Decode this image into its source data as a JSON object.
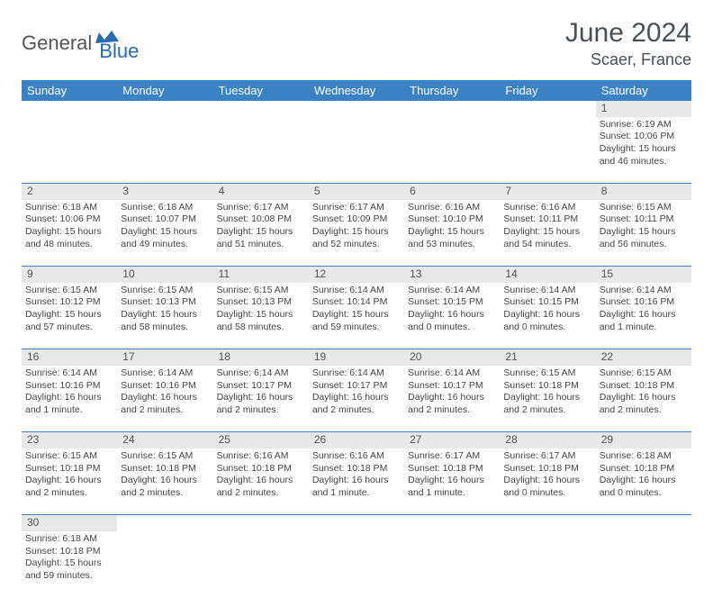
{
  "logo": {
    "part1": "General",
    "part2": "Blue"
  },
  "title": "June 2024",
  "location": "Scaer, France",
  "colors": {
    "header_bg": "#3b82c4",
    "header_text": "#ffffff",
    "daynum_bg": "#e8e8e8",
    "border": "#3b82c4",
    "logo_gray": "#555555",
    "logo_blue": "#2b6cb0"
  },
  "weekdays": [
    "Sunday",
    "Monday",
    "Tuesday",
    "Wednesday",
    "Thursday",
    "Friday",
    "Saturday"
  ],
  "weeks": [
    {
      "nums": [
        "",
        "",
        "",
        "",
        "",
        "",
        "1"
      ],
      "cells": [
        null,
        null,
        null,
        null,
        null,
        null,
        {
          "sunrise": "Sunrise: 6:19 AM",
          "sunset": "Sunset: 10:06 PM",
          "day1": "Daylight: 15 hours",
          "day2": "and 46 minutes."
        }
      ]
    },
    {
      "nums": [
        "2",
        "3",
        "4",
        "5",
        "6",
        "7",
        "8"
      ],
      "cells": [
        {
          "sunrise": "Sunrise: 6:18 AM",
          "sunset": "Sunset: 10:06 PM",
          "day1": "Daylight: 15 hours",
          "day2": "and 48 minutes."
        },
        {
          "sunrise": "Sunrise: 6:18 AM",
          "sunset": "Sunset: 10:07 PM",
          "day1": "Daylight: 15 hours",
          "day2": "and 49 minutes."
        },
        {
          "sunrise": "Sunrise: 6:17 AM",
          "sunset": "Sunset: 10:08 PM",
          "day1": "Daylight: 15 hours",
          "day2": "and 51 minutes."
        },
        {
          "sunrise": "Sunrise: 6:17 AM",
          "sunset": "Sunset: 10:09 PM",
          "day1": "Daylight: 15 hours",
          "day2": "and 52 minutes."
        },
        {
          "sunrise": "Sunrise: 6:16 AM",
          "sunset": "Sunset: 10:10 PM",
          "day1": "Daylight: 15 hours",
          "day2": "and 53 minutes."
        },
        {
          "sunrise": "Sunrise: 6:16 AM",
          "sunset": "Sunset: 10:11 PM",
          "day1": "Daylight: 15 hours",
          "day2": "and 54 minutes."
        },
        {
          "sunrise": "Sunrise: 6:15 AM",
          "sunset": "Sunset: 10:11 PM",
          "day1": "Daylight: 15 hours",
          "day2": "and 56 minutes."
        }
      ]
    },
    {
      "nums": [
        "9",
        "10",
        "11",
        "12",
        "13",
        "14",
        "15"
      ],
      "cells": [
        {
          "sunrise": "Sunrise: 6:15 AM",
          "sunset": "Sunset: 10:12 PM",
          "day1": "Daylight: 15 hours",
          "day2": "and 57 minutes."
        },
        {
          "sunrise": "Sunrise: 6:15 AM",
          "sunset": "Sunset: 10:13 PM",
          "day1": "Daylight: 15 hours",
          "day2": "and 58 minutes."
        },
        {
          "sunrise": "Sunrise: 6:15 AM",
          "sunset": "Sunset: 10:13 PM",
          "day1": "Daylight: 15 hours",
          "day2": "and 58 minutes."
        },
        {
          "sunrise": "Sunrise: 6:14 AM",
          "sunset": "Sunset: 10:14 PM",
          "day1": "Daylight: 15 hours",
          "day2": "and 59 minutes."
        },
        {
          "sunrise": "Sunrise: 6:14 AM",
          "sunset": "Sunset: 10:15 PM",
          "day1": "Daylight: 16 hours",
          "day2": "and 0 minutes."
        },
        {
          "sunrise": "Sunrise: 6:14 AM",
          "sunset": "Sunset: 10:15 PM",
          "day1": "Daylight: 16 hours",
          "day2": "and 0 minutes."
        },
        {
          "sunrise": "Sunrise: 6:14 AM",
          "sunset": "Sunset: 10:16 PM",
          "day1": "Daylight: 16 hours",
          "day2": "and 1 minute."
        }
      ]
    },
    {
      "nums": [
        "16",
        "17",
        "18",
        "19",
        "20",
        "21",
        "22"
      ],
      "cells": [
        {
          "sunrise": "Sunrise: 6:14 AM",
          "sunset": "Sunset: 10:16 PM",
          "day1": "Daylight: 16 hours",
          "day2": "and 1 minute."
        },
        {
          "sunrise": "Sunrise: 6:14 AM",
          "sunset": "Sunset: 10:16 PM",
          "day1": "Daylight: 16 hours",
          "day2": "and 2 minutes."
        },
        {
          "sunrise": "Sunrise: 6:14 AM",
          "sunset": "Sunset: 10:17 PM",
          "day1": "Daylight: 16 hours",
          "day2": "and 2 minutes."
        },
        {
          "sunrise": "Sunrise: 6:14 AM",
          "sunset": "Sunset: 10:17 PM",
          "day1": "Daylight: 16 hours",
          "day2": "and 2 minutes."
        },
        {
          "sunrise": "Sunrise: 6:14 AM",
          "sunset": "Sunset: 10:17 PM",
          "day1": "Daylight: 16 hours",
          "day2": "and 2 minutes."
        },
        {
          "sunrise": "Sunrise: 6:15 AM",
          "sunset": "Sunset: 10:18 PM",
          "day1": "Daylight: 16 hours",
          "day2": "and 2 minutes."
        },
        {
          "sunrise": "Sunrise: 6:15 AM",
          "sunset": "Sunset: 10:18 PM",
          "day1": "Daylight: 16 hours",
          "day2": "and 2 minutes."
        }
      ]
    },
    {
      "nums": [
        "23",
        "24",
        "25",
        "26",
        "27",
        "28",
        "29"
      ],
      "cells": [
        {
          "sunrise": "Sunrise: 6:15 AM",
          "sunset": "Sunset: 10:18 PM",
          "day1": "Daylight: 16 hours",
          "day2": "and 2 minutes."
        },
        {
          "sunrise": "Sunrise: 6:15 AM",
          "sunset": "Sunset: 10:18 PM",
          "day1": "Daylight: 16 hours",
          "day2": "and 2 minutes."
        },
        {
          "sunrise": "Sunrise: 6:16 AM",
          "sunset": "Sunset: 10:18 PM",
          "day1": "Daylight: 16 hours",
          "day2": "and 2 minutes."
        },
        {
          "sunrise": "Sunrise: 6:16 AM",
          "sunset": "Sunset: 10:18 PM",
          "day1": "Daylight: 16 hours",
          "day2": "and 1 minute."
        },
        {
          "sunrise": "Sunrise: 6:17 AM",
          "sunset": "Sunset: 10:18 PM",
          "day1": "Daylight: 16 hours",
          "day2": "and 1 minute."
        },
        {
          "sunrise": "Sunrise: 6:17 AM",
          "sunset": "Sunset: 10:18 PM",
          "day1": "Daylight: 16 hours",
          "day2": "and 0 minutes."
        },
        {
          "sunrise": "Sunrise: 6:18 AM",
          "sunset": "Sunset: 10:18 PM",
          "day1": "Daylight: 16 hours",
          "day2": "and 0 minutes."
        }
      ]
    },
    {
      "nums": [
        "30",
        "",
        "",
        "",
        "",
        "",
        ""
      ],
      "cells": [
        {
          "sunrise": "Sunrise: 6:18 AM",
          "sunset": "Sunset: 10:18 PM",
          "day1": "Daylight: 15 hours",
          "day2": "and 59 minutes."
        },
        null,
        null,
        null,
        null,
        null,
        null
      ]
    }
  ]
}
